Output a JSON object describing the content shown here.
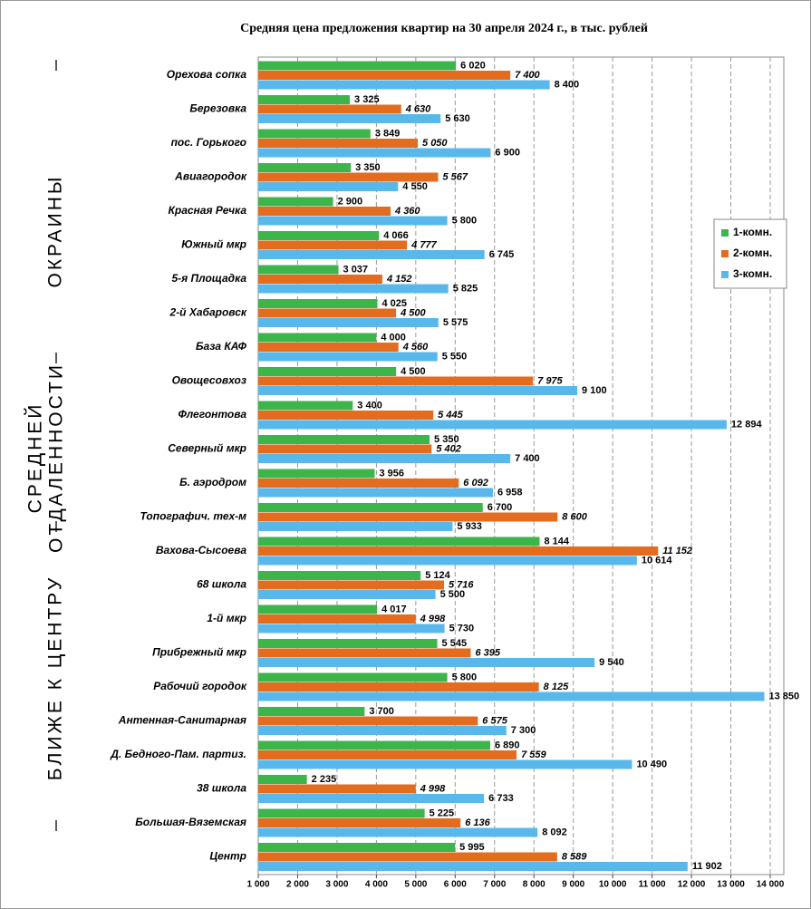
{
  "chart_data": {
    "type": "hbar",
    "title": "Средняя цена предложения квартир на 30 апреля 2024 г., в тыс. рублей",
    "annotations": [
      "ОКРАИНЫ",
      "СРЕДНЕЙ",
      "ОТДАЛЕННОСТИ",
      "БЛИЖЕ  К  ЦЕНТРУ"
    ],
    "categories": [
      "Орехова сопка",
      "Березовка",
      "пос. Горького",
      "Авиагородок",
      "Красная Речка",
      "Южный мкр",
      "5-я Площадка",
      "2-й Хабаровск",
      "База КАФ",
      "Овощесовхоз",
      "Флегонтова",
      "Северный мкр",
      "Б. аэродром",
      "Топографич. тех-м",
      "Вахова-Сысоева",
      "68 школа",
      "1-й мкр",
      "Прибрежный мкр",
      "Рабочий городок",
      "Антенная-Санитарная",
      "Д. Бедного-Пам. партиз.",
      "38 школа",
      "Большая-Вяземская",
      "Центр"
    ],
    "series": [
      {
        "name": "1-комн.",
        "color": "#3cb54a",
        "values": [
          6020,
          3325,
          3849,
          3350,
          2900,
          4066,
          3037,
          4025,
          4000,
          4500,
          3400,
          5350,
          3956,
          6700,
          8144,
          5124,
          4017,
          5545,
          5800,
          3700,
          6890,
          2235,
          5225,
          5995
        ],
        "value_labels": [
          "6 020",
          "3 325",
          "3 849",
          "3 350",
          "2 900",
          "4 066",
          "3 037",
          "4 025",
          "4 000",
          "4 500",
          "3 400",
          "5 350",
          "3 956",
          "6 700",
          "8 144",
          "5 124",
          "4 017",
          "5 545",
          "5 800",
          "3 700",
          "6 890",
          "2 235",
          "5 225",
          "5 995"
        ]
      },
      {
        "name": "2-комн.",
        "color": "#e46c1e",
        "values": [
          7400,
          4630,
          5050,
          5567,
          4360,
          4777,
          4152,
          4500,
          4560,
          7975,
          5445,
          5402,
          6092,
          8600,
          11152,
          5716,
          4998,
          6395,
          8125,
          6575,
          7559,
          4998,
          6136,
          8589
        ],
        "value_labels": [
          "7 400",
          "4 630",
          "5 050",
          "5 567",
          "4 360",
          "4 777",
          "4 152",
          "4 500",
          "4 560",
          "7 975",
          "5 445",
          "5 402",
          "6 092",
          "8 600",
          "11 152",
          "5 716",
          "4 998",
          "6 395",
          "8 125",
          "6 575",
          "7 559",
          "4 998",
          "6 136",
          "8 589"
        ]
      },
      {
        "name": "3-комн.",
        "color": "#58b8ec",
        "values": [
          8400,
          5630,
          6900,
          4550,
          5800,
          6745,
          5825,
          5575,
          5550,
          9100,
          12894,
          7400,
          6958,
          5933,
          10614,
          5500,
          5730,
          9540,
          13850,
          7300,
          10490,
          6733,
          8092,
          11902
        ],
        "value_labels": [
          "8 400",
          "5 630",
          "6 900",
          "4 550",
          "5 800",
          "6 745",
          "5 825",
          "5 575",
          "5 550",
          "9 100",
          "12 894",
          "7 400",
          "6 958",
          "5 933",
          "10 614",
          "5 500",
          "5 730",
          "9 540",
          "13 850",
          "7 300",
          "10 490",
          "6 733",
          "8 092",
          "11 902"
        ]
      }
    ],
    "xlim": [
      1000,
      14000
    ],
    "xticks": [
      {
        "value": 1000,
        "label": "1 000"
      },
      {
        "value": 2000,
        "label": "2 000"
      },
      {
        "value": 3000,
        "label": "3 000"
      },
      {
        "value": 4000,
        "label": "4 000"
      },
      {
        "value": 5000,
        "label": "5 000"
      },
      {
        "value": 6000,
        "label": "6 000"
      },
      {
        "value": 7000,
        "label": "7 000"
      },
      {
        "value": 8000,
        "label": "8 000"
      },
      {
        "value": 9000,
        "label": "9 000"
      },
      {
        "value": 10000,
        "label": "10 000"
      },
      {
        "value": 11000,
        "label": "11 000"
      },
      {
        "value": 12000,
        "label": "12 000"
      },
      {
        "value": 13000,
        "label": "13 000"
      },
      {
        "value": 14000,
        "label": "14 000"
      }
    ],
    "grid": true,
    "legend": "right"
  }
}
